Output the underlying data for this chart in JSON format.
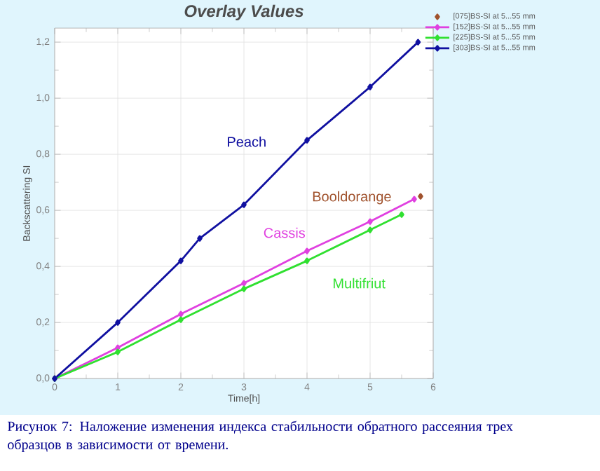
{
  "chart_data": {
    "type": "line",
    "title": "Overlay Values",
    "xlabel": "Time[h]",
    "ylabel": "Backscattering SI",
    "xlim": [
      0,
      6
    ],
    "ylim": [
      0,
      1.25
    ],
    "xticks": [
      0,
      1,
      2,
      3,
      4,
      5,
      6
    ],
    "yticks": [
      {
        "value": 0,
        "label": "0,0"
      },
      {
        "value": 0.2,
        "label": "0,2"
      },
      {
        "value": 0.4,
        "label": "0,4"
      },
      {
        "value": 0.6,
        "label": "0,6"
      },
      {
        "value": 0.8,
        "label": "0,8"
      },
      {
        "value": 1.0,
        "label": "1,0"
      },
      {
        "value": 1.2,
        "label": "1,2"
      }
    ],
    "grid": true,
    "legend": "top right",
    "marker": "diamond",
    "series": [
      {
        "name": "[075]BS-SI at 5...55 mm",
        "color": "#a0522d",
        "type": "scatter",
        "x": [
          5.8
        ],
        "values": [
          0.65
        ]
      },
      {
        "name": "[152]BS-SI at 5...55 mm",
        "color": "#e040e0",
        "x": [
          0,
          1,
          2,
          3,
          4,
          5,
          5.7
        ],
        "values": [
          0,
          0.11,
          0.23,
          0.34,
          0.455,
          0.56,
          0.64
        ]
      },
      {
        "name": "[225]BS-SI at 5...55 mm",
        "color": "#30e030",
        "x": [
          0,
          1,
          2,
          3,
          4,
          5,
          5.5
        ],
        "values": [
          0,
          0.095,
          0.21,
          0.32,
          0.42,
          0.53,
          0.585
        ]
      },
      {
        "name": "[303]BS-SI at 5...55 mm",
        "color": "#1010a0",
        "x": [
          0,
          1,
          2,
          2.3,
          3,
          4,
          5,
          5.76
        ],
        "values": [
          0,
          0.2,
          0.42,
          0.5,
          0.62,
          0.85,
          1.04,
          1.2
        ]
      }
    ],
    "annotations": [
      "Booldorange",
      "Cassis",
      "Multifriut",
      "Peach",
      "Рисунок 7: Наложение изменения индекса стабильности обратного рассеяния трех образцов в зависимости от времени."
    ]
  }
}
